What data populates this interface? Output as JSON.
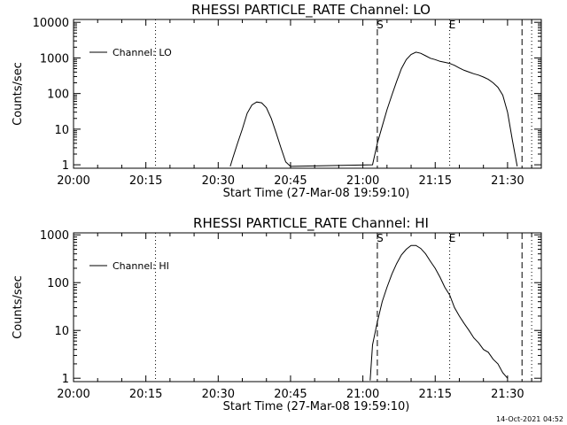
{
  "footer": {
    "timestamp": "14-Oct-2021 04:52"
  },
  "chart_data": [
    {
      "type": "line",
      "title": "RHESSI PARTICLE_RATE Channel: LO",
      "xlabel": "Start Time (27-Mar-08 19:59:10)",
      "ylabel": "Counts/sec",
      "y_scale": "log",
      "xlim": [
        "20:00",
        "21:37"
      ],
      "ylim": [
        0.8,
        12000
      ],
      "x_ticks": [
        "20:00",
        "20:15",
        "20:30",
        "20:45",
        "21:00",
        "21:15",
        "21:30"
      ],
      "y_ticks": [
        "1",
        "10",
        "100",
        "1000",
        "10000"
      ],
      "legend": {
        "position": "top-left",
        "entries": [
          "Channel: LO"
        ]
      },
      "markers": [
        {
          "label": "",
          "time": "20:17",
          "style": "dotted"
        },
        {
          "label": "S",
          "time": "21:03",
          "style": "dashed"
        },
        {
          "label": "E",
          "time": "21:18",
          "style": "dotted"
        },
        {
          "label": "",
          "time": "21:33",
          "style": "dashed"
        },
        {
          "label": "",
          "time": "21:35",
          "style": "dotted"
        }
      ],
      "series": [
        {
          "name": "Channel: LO",
          "x": [
            "20:32:30",
            "20:33:00",
            "20:34:00",
            "20:35:00",
            "20:36:00",
            "20:37:00",
            "20:38:00",
            "20:39:00",
            "20:40:00",
            "20:41:00",
            "20:42:00",
            "20:43:00",
            "20:44:00",
            "20:45:00",
            "21:02:00",
            "21:02:30",
            "21:03:00",
            "21:04:00",
            "21:05:00",
            "21:06:00",
            "21:07:00",
            "21:08:00",
            "21:09:00",
            "21:10:00",
            "21:11:00",
            "21:12:00",
            "21:13:00",
            "21:14:00",
            "21:15:00",
            "21:16:00",
            "21:17:00",
            "21:18:00",
            "21:19:00",
            "21:20:00",
            "21:21:00",
            "21:22:00",
            "21:23:00",
            "21:24:00",
            "21:25:00",
            "21:26:00",
            "21:27:00",
            "21:28:00",
            "21:29:00",
            "21:30:00",
            "21:31:00",
            "21:32:00"
          ],
          "y": [
            0.9,
            1.5,
            4,
            10,
            28,
            48,
            58,
            55,
            40,
            20,
            8,
            3,
            1.2,
            0.9,
            1,
            2,
            4,
            12,
            35,
            90,
            220,
            500,
            900,
            1250,
            1450,
            1350,
            1150,
            980,
            900,
            800,
            750,
            700,
            620,
            520,
            450,
            400,
            360,
            330,
            290,
            250,
            200,
            150,
            90,
            30,
            5,
            0.9
          ]
        }
      ]
    },
    {
      "type": "line",
      "title": "RHESSI PARTICLE_RATE Channel: HI",
      "xlabel": "Start Time (27-Mar-08 19:59:10)",
      "ylabel": "Counts/sec",
      "y_scale": "log",
      "xlim": [
        "20:00",
        "21:37"
      ],
      "ylim": [
        0.85,
        1100
      ],
      "x_ticks": [
        "20:00",
        "20:15",
        "20:30",
        "20:45",
        "21:00",
        "21:15",
        "21:30"
      ],
      "y_ticks": [
        "1",
        "10",
        "100",
        "1000"
      ],
      "legend": {
        "position": "top-left",
        "entries": [
          "Channel: HI"
        ]
      },
      "markers": [
        {
          "label": "",
          "time": "20:17",
          "style": "dotted"
        },
        {
          "label": "S",
          "time": "21:03",
          "style": "dashed"
        },
        {
          "label": "E",
          "time": "21:18",
          "style": "dotted"
        },
        {
          "label": "",
          "time": "21:33",
          "style": "dashed"
        },
        {
          "label": "",
          "time": "21:35",
          "style": "dotted"
        }
      ],
      "series": [
        {
          "name": "Channel: HI",
          "x": [
            "21:01:30",
            "21:02:00",
            "21:03:00",
            "21:04:00",
            "21:05:00",
            "21:06:00",
            "21:07:00",
            "21:08:00",
            "21:09:00",
            "21:10:00",
            "21:11:00",
            "21:12:00",
            "21:13:00",
            "21:14:00",
            "21:15:00",
            "21:16:00",
            "21:17:00",
            "21:18:00",
            "21:19:00",
            "21:20:00",
            "21:21:00",
            "21:22:00",
            "21:23:00",
            "21:24:00",
            "21:25:00",
            "21:26:00",
            "21:27:00",
            "21:28:00",
            "21:29:00",
            "21:30:00"
          ],
          "y": [
            0.9,
            5,
            15,
            40,
            80,
            150,
            250,
            380,
            500,
            600,
            600,
            520,
            400,
            280,
            200,
            130,
            80,
            55,
            30,
            20,
            14,
            10,
            7,
            5.5,
            4,
            3.5,
            2.5,
            2,
            1.3,
            1
          ]
        }
      ]
    }
  ]
}
